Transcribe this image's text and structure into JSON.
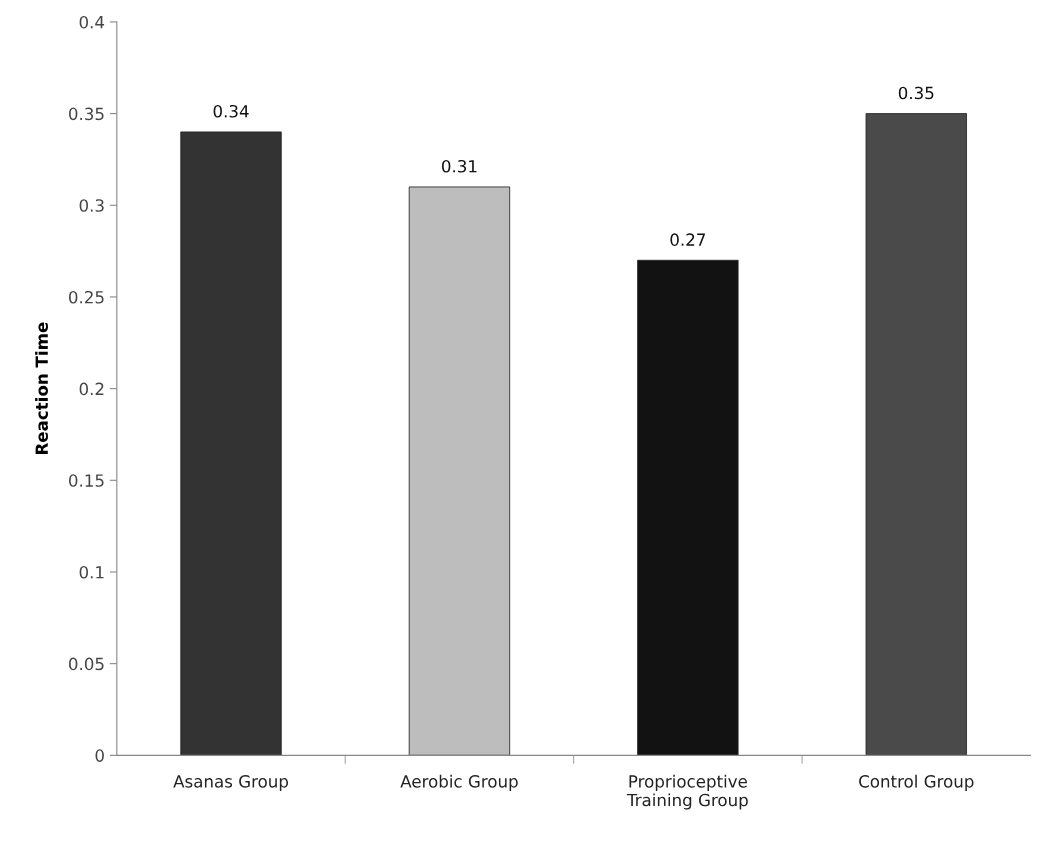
{
  "chart_data": {
    "type": "bar",
    "ylabel": "Reaction Time",
    "categories": [
      "Asanas Group",
      "Aerobic Group",
      "Proprioceptive\nTraining Group",
      "Control Group"
    ],
    "values": [
      0.34,
      0.31,
      0.27,
      0.35
    ],
    "colors": [
      "#333333",
      "#bdbdbd",
      "#121212",
      "#4a4a4a"
    ],
    "ylim": [
      0,
      0.4
    ],
    "yticks": [
      0,
      0.05,
      0.1,
      0.15,
      0.2,
      0.25,
      0.3,
      0.35,
      0.4
    ],
    "data_labels": true,
    "grid": false,
    "legend": false
  }
}
